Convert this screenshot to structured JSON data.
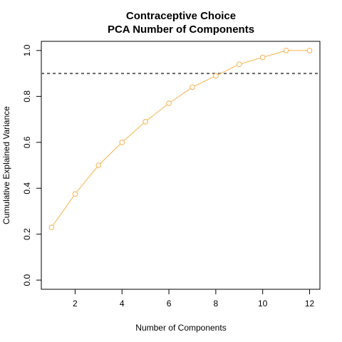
{
  "chart_data": {
    "type": "line",
    "title": [
      "Contraceptive Choice",
      "PCA Number of Components"
    ],
    "xlabel": "Number of Components",
    "ylabel": "Cumulative Explained Variance",
    "x": [
      1,
      2,
      3,
      4,
      5,
      6,
      7,
      8,
      9,
      10,
      11,
      12
    ],
    "series": [
      {
        "values": [
          0.23,
          0.375,
          0.5,
          0.6,
          0.69,
          0.77,
          0.84,
          0.89,
          0.94,
          0.97,
          1.0,
          1.0
        ],
        "color": "#F5B14D"
      }
    ],
    "reference_line": {
      "y": 0.9,
      "style": "dashed",
      "color": "#666666"
    },
    "xlim": [
      0.56,
      12.44
    ],
    "ylim": [
      -0.04,
      1.04
    ],
    "x_ticks": [
      2,
      4,
      6,
      8,
      10,
      12
    ],
    "x_tick_labels": [
      "2",
      "4",
      "6",
      "8",
      "10",
      "12"
    ],
    "y_ticks": [
      0.0,
      0.2,
      0.4,
      0.6,
      0.8,
      1.0
    ],
    "y_tick_labels": [
      "0.0",
      "0.2",
      "0.4",
      "0.6",
      "0.8",
      "1.0"
    ],
    "grid": false,
    "marker": "open-circle"
  }
}
